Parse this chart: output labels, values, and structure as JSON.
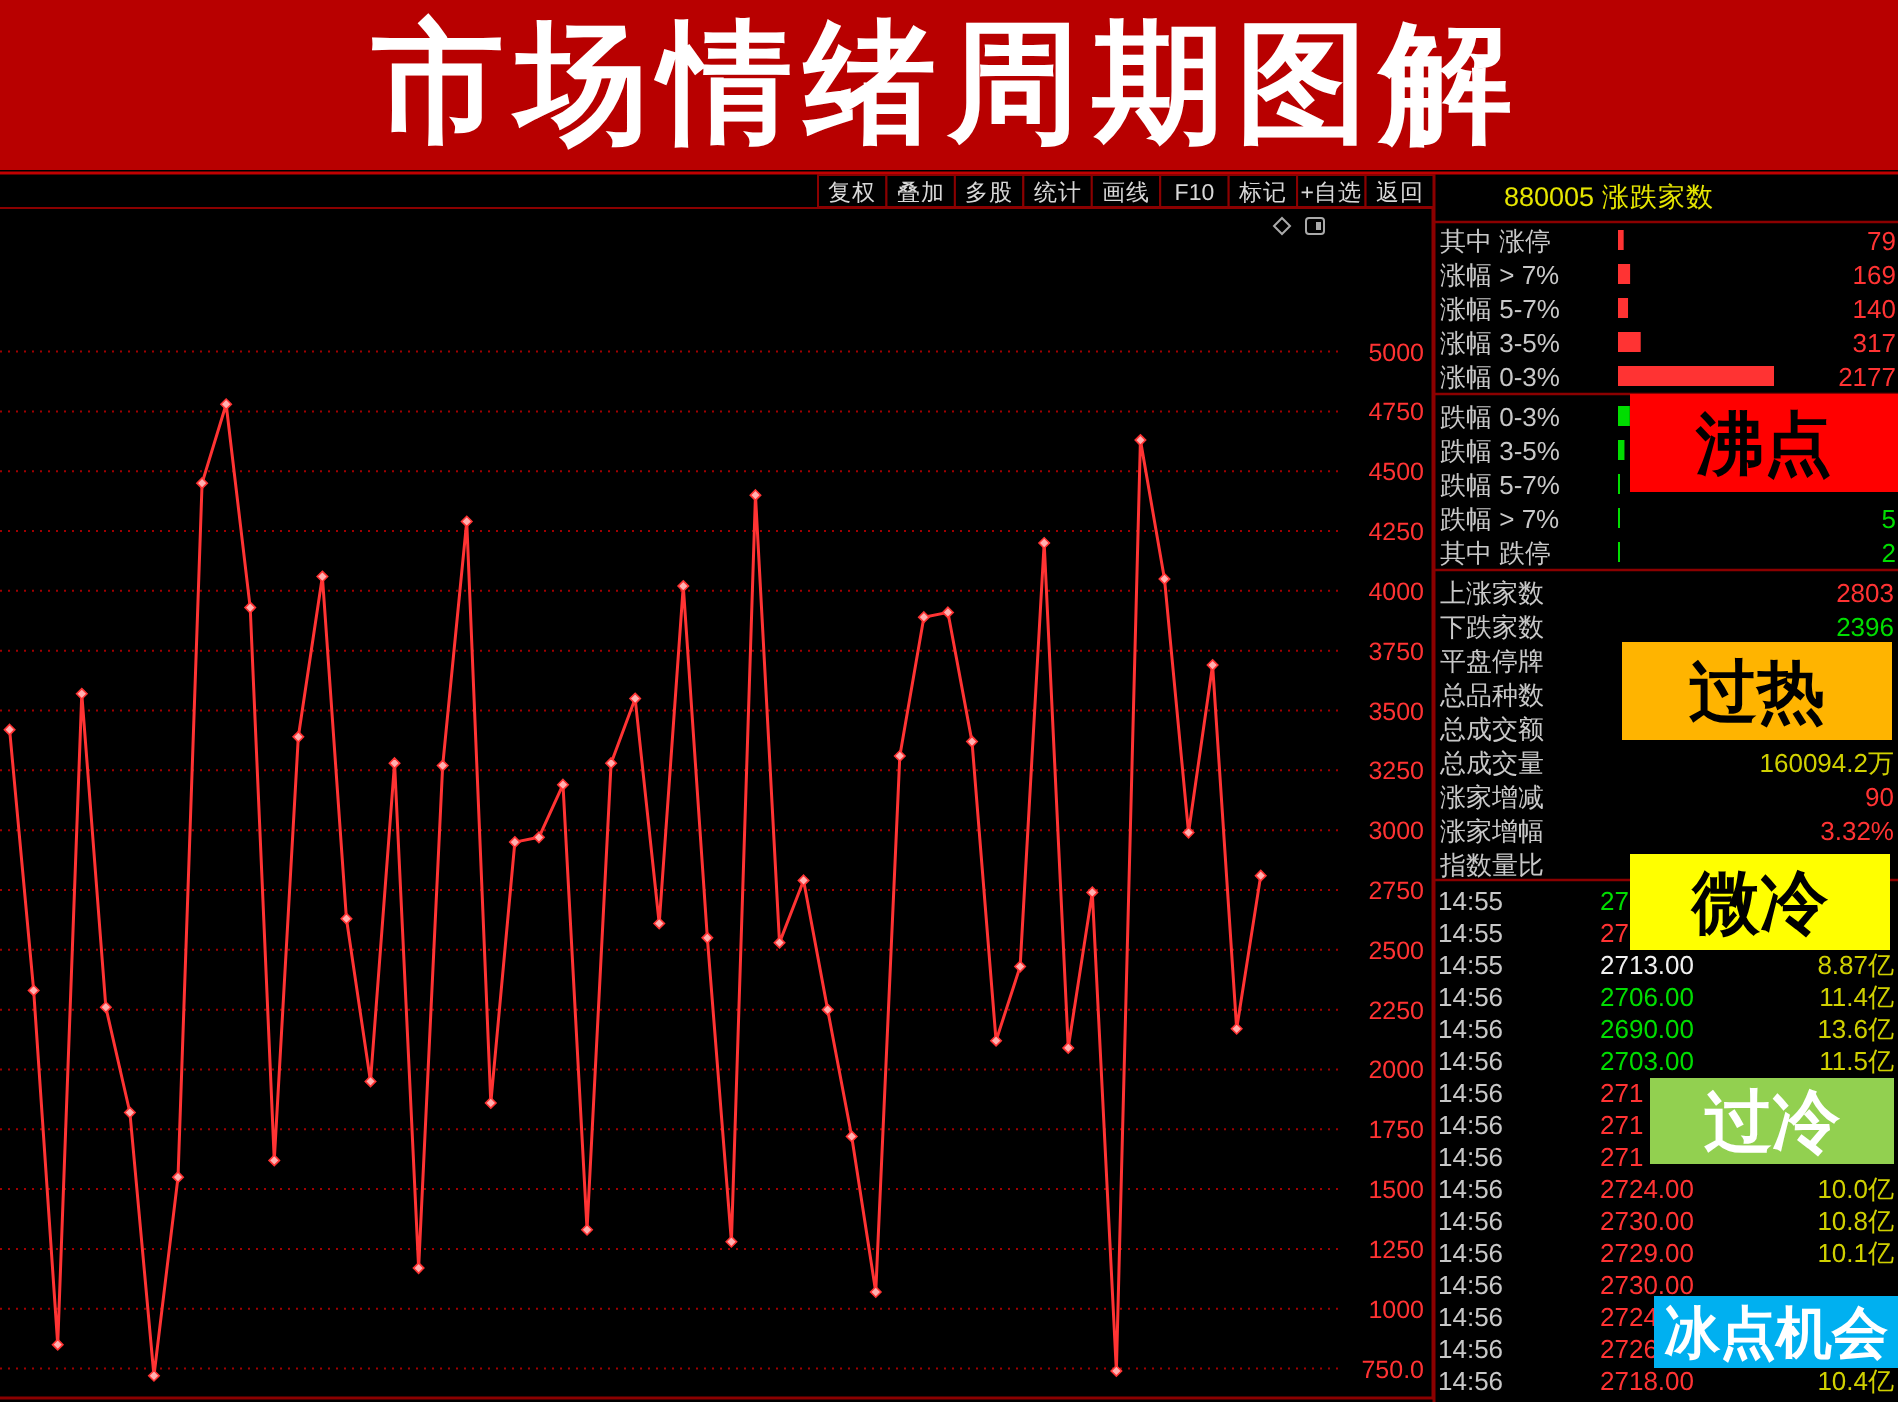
{
  "chart_data": [
    {
      "type": "line",
      "title": "市场情绪周期图解",
      "categories": [
        null,
        null,
        null,
        null,
        null,
        null,
        null,
        null,
        null,
        null,
        null,
        null,
        null,
        null,
        null,
        null,
        null,
        null,
        null,
        null,
        null,
        null,
        null,
        null,
        null,
        null,
        null,
        null,
        null,
        null,
        null,
        null,
        null,
        null,
        null,
        null,
        null,
        null,
        null,
        null,
        null,
        null,
        null,
        null,
        null,
        null,
        null,
        null,
        null,
        null,
        null,
        null,
        null
      ],
      "series": [
        {
          "color": "#ff3333",
          "values": [
            3420,
            2330,
            850,
            3570,
            2260,
            1820,
            720,
            1550,
            4450,
            4780,
            3930,
            1620,
            3390,
            4060,
            2630,
            1950,
            3280,
            1170,
            3270,
            4290,
            1860,
            2950,
            2970,
            3190,
            1330,
            3280,
            3550,
            2610,
            4020,
            2550,
            1280,
            4400,
            2530,
            2790,
            2250,
            1720,
            1070,
            3310,
            3890,
            3910,
            3370,
            2120,
            2430,
            4200,
            2090,
            2740,
            740,
            4630,
            4050,
            2990,
            3690,
            2170,
            2810
          ]
        }
      ],
      "ylim": [
        627,
        5600
      ],
      "yticks": [
        {
          "value": 750,
          "label": "750.0"
        },
        1000,
        1250,
        1500,
        1750,
        2000,
        2250,
        2500,
        2750,
        3000,
        3250,
        3500,
        3750,
        4000,
        4250,
        4500,
        4750,
        5000
      ],
      "grid": "y",
      "marker": "diamond",
      "tick_labels": "y",
      "annotations": [
        "复权",
        "叠加",
        "多股",
        "统计",
        "画线",
        "F10",
        "标记",
        "+自选",
        "返回"
      ]
    },
    {
      "type": "bar",
      "orientation": "horizontal",
      "title": "880005 涨跌家数",
      "categories": [
        "其中 涨停",
        "涨幅 > 7%",
        "涨幅 5-7%",
        "涨幅 3-5%",
        "涨幅 0-3%",
        "跌幅 0-3%",
        "跌幅 3-5%",
        "跌幅 5-7%",
        "跌幅 > 7%",
        "其中 跌停"
      ],
      "values": [
        79,
        169,
        140,
        317,
        2177,
        165,
        90,
        20,
        5,
        2
      ],
      "colors": [
        "#ff3333",
        "#ff3333",
        "#ff3333",
        "#ff3333",
        "#ff3333",
        "#00dd00",
        "#00dd00",
        "#00dd00",
        "#00dd00",
        "#00dd00"
      ],
      "value_labels": [
        "79",
        "169",
        "140",
        "317",
        "2177",
        null,
        null,
        null,
        "5",
        "2"
      ]
    },
    {
      "type": "other",
      "annotations": [
        "上涨家数",
        "2803",
        "下跌家数",
        "2396",
        "平盘停牌",
        "总品种数",
        "总成交额",
        "总成交量",
        "160094.2万",
        "涨家增减",
        "90",
        "涨家增幅",
        "3.32%",
        "指数量比",
        "14:55",
        "27",
        "14:55",
        "27",
        "14:55",
        "2713.00",
        "8.87亿",
        "14:56",
        "2706.00",
        "11.4亿",
        "14:56",
        "2690.00",
        "13.6亿",
        "14:56",
        "2703.00",
        "11.5亿",
        "14:56",
        "271",
        "14:56",
        "271",
        "14:56",
        "271",
        "14:56",
        "2724.00",
        "10.0亿",
        "14:56",
        "2730.00",
        "10.8亿",
        "14:56",
        "2729.00",
        "10.1亿",
        "14:56",
        "2730.00",
        "14:56",
        "2724",
        "14:56",
        "2726",
        "14:56",
        "2718.00",
        "10.4亿",
        "沸点",
        "过热",
        "微冷",
        "过冷",
        "冰点机会"
      ]
    }
  ]
}
